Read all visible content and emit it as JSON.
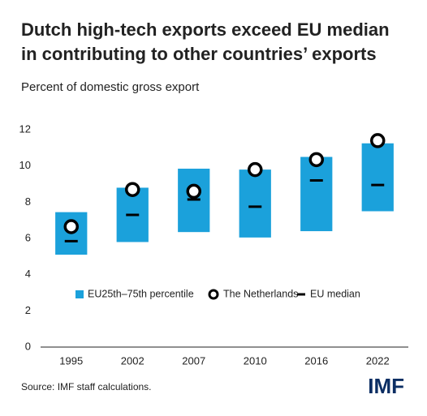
{
  "chart_data": {
    "type": "range-bar",
    "title": [
      "Dutch high-tech exports exceed EU median",
      "in contributing to other countries’ exports"
    ],
    "subtitle": "Percent of domestic gross export",
    "categories": [
      "1995",
      "2002",
      "2007",
      "2010",
      "2016",
      "2022"
    ],
    "series": [
      {
        "name": "EU25th–75th percentile",
        "color": "#1ba1db",
        "low": [
          5.1,
          5.8,
          6.35,
          6.05,
          6.4,
          7.5
        ],
        "high": [
          7.45,
          8.8,
          9.85,
          9.8,
          10.5,
          11.25
        ]
      },
      {
        "name": "The Netherlands",
        "color": "#000000",
        "values": [
          6.65,
          8.7,
          8.6,
          9.8,
          10.35,
          11.4
        ]
      },
      {
        "name": "EU median",
        "color": "#000000",
        "values": [
          5.85,
          7.3,
          8.15,
          7.75,
          9.2,
          8.95
        ]
      }
    ],
    "ylim": [
      0,
      12
    ],
    "yticks": [
      0,
      2,
      4,
      6,
      8,
      10,
      12
    ],
    "grid": false,
    "source": "Source: IMF staff calculations.",
    "logo": "IMF"
  }
}
